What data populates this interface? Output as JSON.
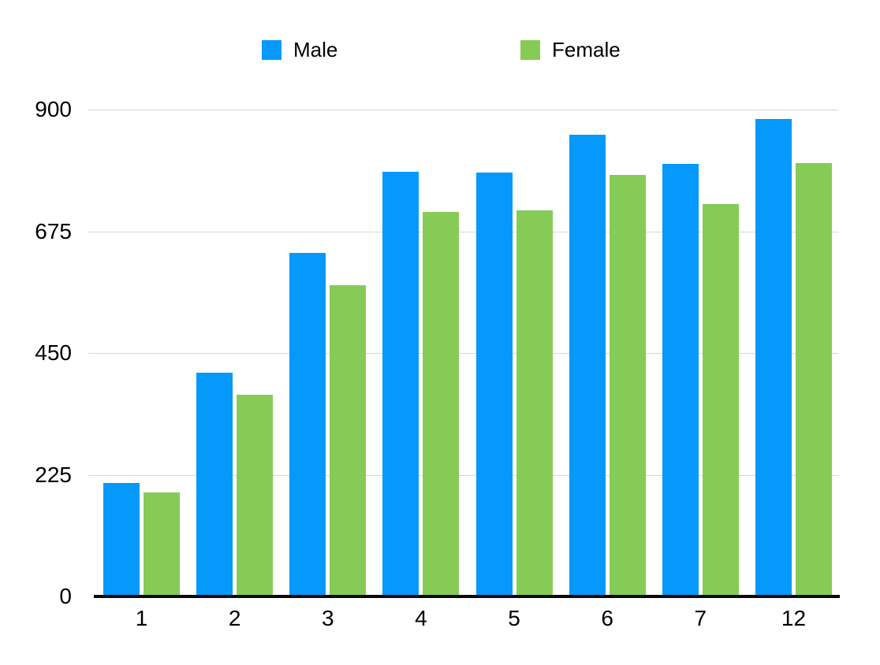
{
  "chart_data": {
    "type": "bar",
    "title": "",
    "categories": [
      "1",
      "2",
      "3",
      "4",
      "5",
      "6",
      "7",
      "12"
    ],
    "series": [
      {
        "name": "Male",
        "color": "#0499FB",
        "values": [
          210,
          413,
          635,
          785,
          784,
          853,
          800,
          883
        ]
      },
      {
        "name": "Female",
        "color": "#87CB57",
        "values": [
          192,
          373,
          575,
          710,
          714,
          779,
          725,
          801
        ]
      }
    ],
    "xlabel": "",
    "ylabel": "",
    "ylim": [
      0,
      900
    ],
    "yticks": [
      0,
      225,
      450,
      675,
      900
    ],
    "grid": true,
    "legend_position": "top",
    "colors": {
      "gridline": "#d7d7d7",
      "axis_line": "#0a0a0a",
      "text": "#000000",
      "background": "#ffffff"
    }
  }
}
